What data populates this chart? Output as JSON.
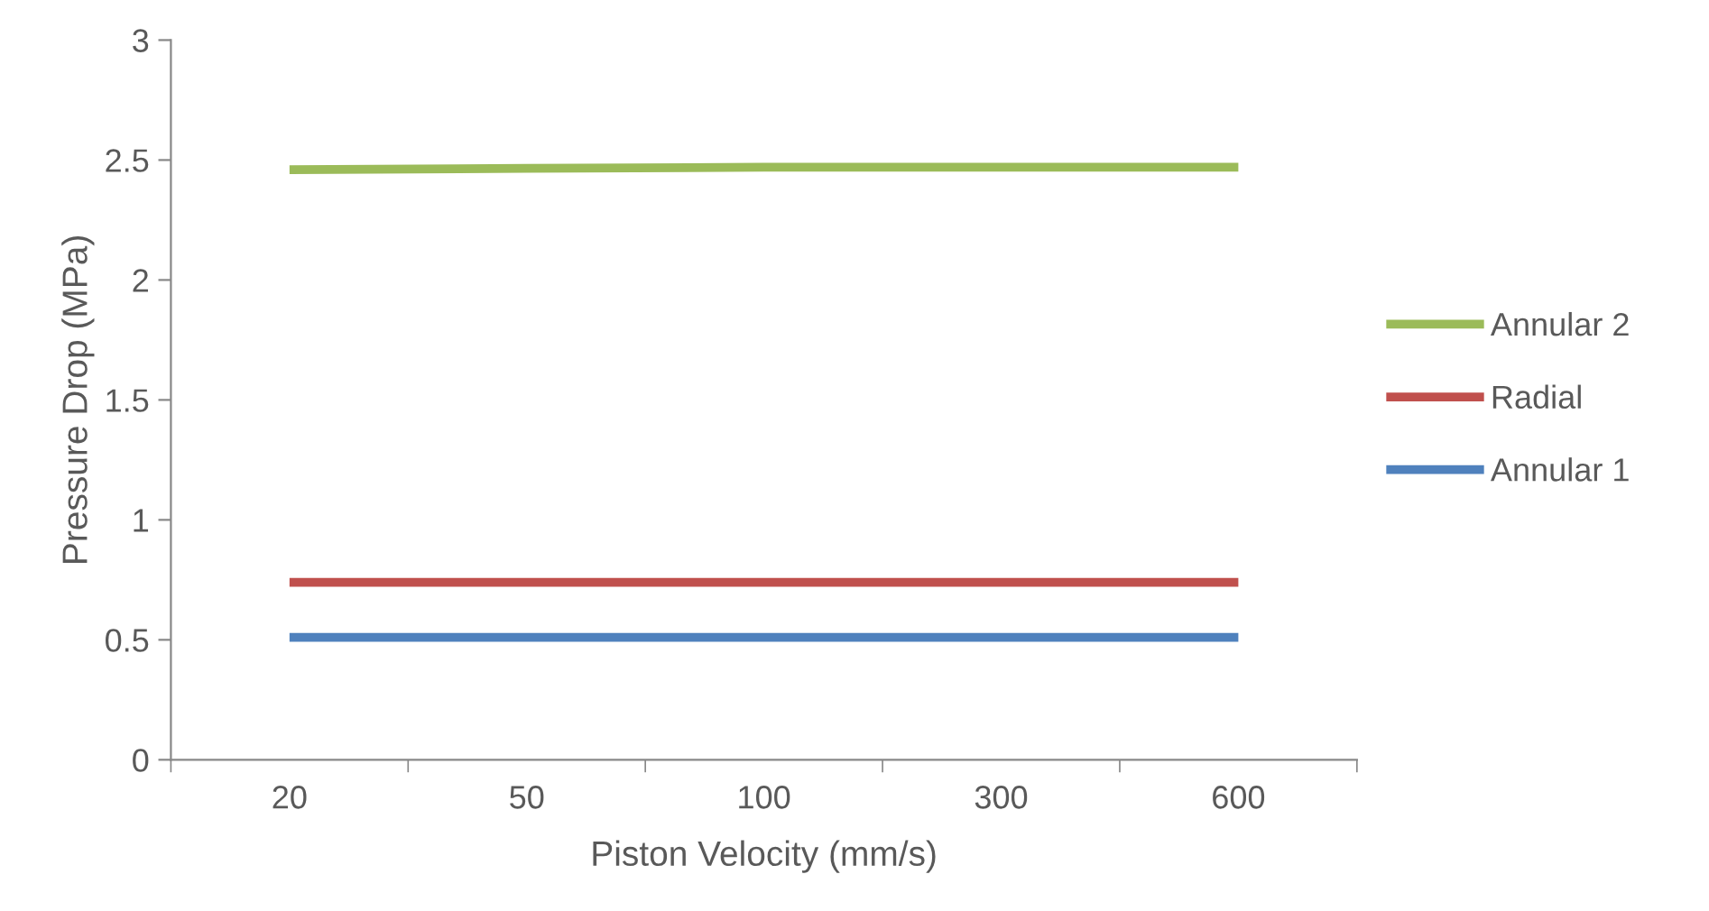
{
  "chart_data": {
    "type": "line",
    "xlabel": "Piston Velocity (mm/s)",
    "ylabel": "Pressure Drop (MPa)",
    "categories": [
      "20",
      "50",
      "100",
      "300",
      "600"
    ],
    "series": [
      {
        "name": "Annular 2",
        "color": "#9bbb59",
        "values": [
          2.46,
          2.465,
          2.47,
          2.47,
          2.47
        ]
      },
      {
        "name": "Radial",
        "color": "#c0504d",
        "values": [
          0.74,
          0.74,
          0.74,
          0.74,
          0.74
        ]
      },
      {
        "name": "Annular 1",
        "color": "#4f81bd",
        "values": [
          0.51,
          0.51,
          0.51,
          0.51,
          0.51
        ]
      }
    ],
    "ylim": [
      0,
      3
    ],
    "yticks": [
      0,
      0.5,
      1,
      1.5,
      2,
      2.5,
      3
    ],
    "grid": false,
    "legend": "right",
    "marker": "none",
    "line_style": "solid"
  }
}
